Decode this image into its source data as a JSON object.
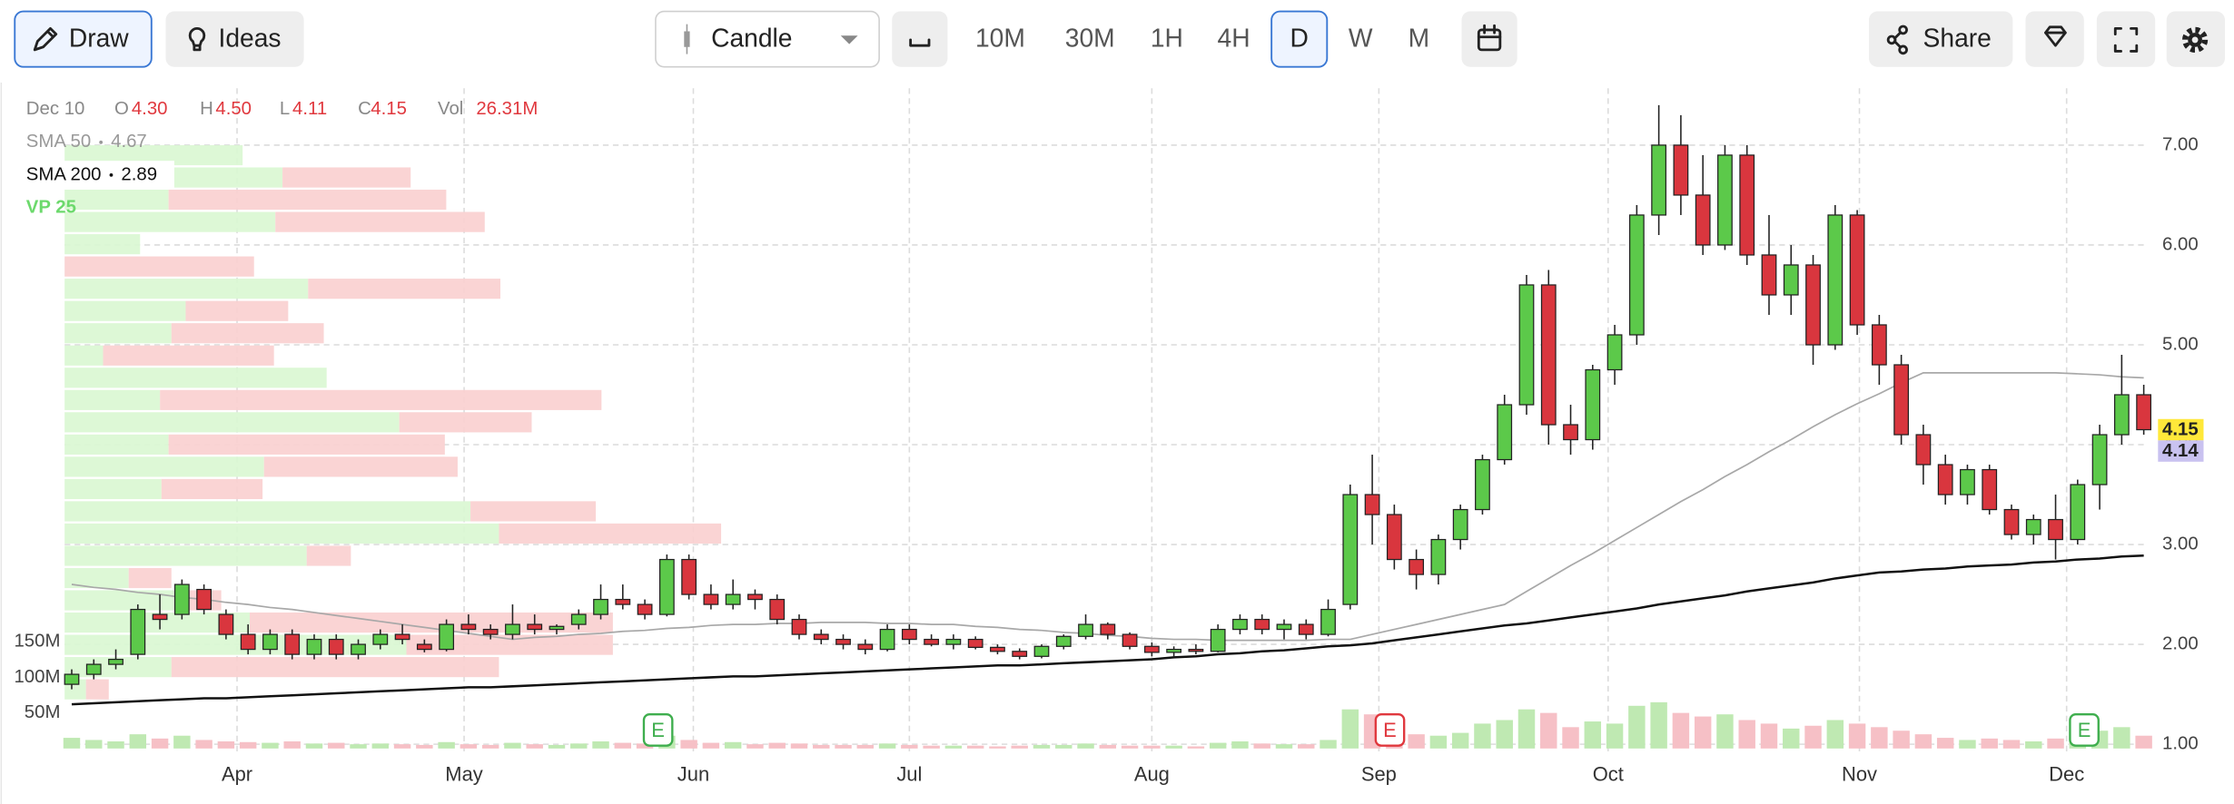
{
  "toolbar": {
    "draw": "Draw",
    "ideas": "Ideas",
    "chart_style": "Candle",
    "intervals": [
      "10M",
      "30M",
      "1H",
      "4H",
      "D",
      "W",
      "M"
    ],
    "active_interval": 4,
    "share": "Share"
  },
  "chart_data": {
    "type": "candlestick",
    "header": {
      "date": "Dec 10",
      "fields": [
        {
          "name": "O",
          "value": "4.30"
        },
        {
          "name": "H",
          "value": "4.50"
        },
        {
          "name": "L",
          "value": "4.11"
        },
        {
          "name": "C",
          "value": "4.15"
        },
        {
          "name": "Vol",
          "value": "26.31M"
        }
      ],
      "value_color": "#e0383e"
    },
    "up_color": "#5cc94a",
    "down_color": "#d9363e",
    "volume_up_color": "#bfe9b2",
    "volume_down_color": "#f6c0c6",
    "xlim": [
      0,
      94
    ],
    "xticks": [
      {
        "value": 7.5,
        "label": "Apr"
      },
      {
        "value": 17.8,
        "label": "May"
      },
      {
        "value": 28.2,
        "label": "Jun"
      },
      {
        "value": 38,
        "label": "Jul"
      },
      {
        "value": 49,
        "label": "Aug"
      },
      {
        "value": 59.3,
        "label": "Sep"
      },
      {
        "value": 69.7,
        "label": "Oct"
      },
      {
        "value": 81.1,
        "label": "Nov"
      },
      {
        "value": 90.5,
        "label": "Dec"
      }
    ],
    "ylim": [
      0.9,
      7.57
    ],
    "yticks": [
      {
        "value": 1,
        "label": "1.00"
      },
      {
        "value": 2,
        "label": "2.00"
      },
      {
        "value": 3,
        "label": "3.00"
      },
      {
        "value": 4,
        "label": "4.00"
      },
      {
        "value": 5,
        "label": "5.00"
      },
      {
        "value": 6,
        "label": "6.00"
      },
      {
        "value": 7,
        "label": "7.00"
      }
    ],
    "grid": true,
    "volume_ylim": [
      0,
      150
    ],
    "volume_ticks": [
      {
        "value": 150,
        "label": "150M"
      },
      {
        "value": 100,
        "label": "100M"
      },
      {
        "value": 50,
        "label": "50M"
      }
    ],
    "candles": [
      [
        1.6,
        1.75,
        1.55,
        1.7
      ],
      [
        1.7,
        1.85,
        1.65,
        1.8
      ],
      [
        1.8,
        1.95,
        1.75,
        1.85
      ],
      [
        1.9,
        2.4,
        1.85,
        2.35
      ],
      [
        2.3,
        2.5,
        2.15,
        2.25
      ],
      [
        2.3,
        2.65,
        2.25,
        2.6
      ],
      [
        2.55,
        2.6,
        2.3,
        2.35
      ],
      [
        2.3,
        2.35,
        2.05,
        2.1
      ],
      [
        2.1,
        2.2,
        1.9,
        1.95
      ],
      [
        1.95,
        2.15,
        1.9,
        2.1
      ],
      [
        2.1,
        2.15,
        1.85,
        1.9
      ],
      [
        1.9,
        2.1,
        1.85,
        2.05
      ],
      [
        2.05,
        2.1,
        1.85,
        1.9
      ],
      [
        1.9,
        2.05,
        1.85,
        2.0
      ],
      [
        2.0,
        2.15,
        1.95,
        2.1
      ],
      [
        2.1,
        2.2,
        2.0,
        2.05
      ],
      [
        2.0,
        2.05,
        1.92,
        1.95
      ],
      [
        1.95,
        2.25,
        1.93,
        2.2
      ],
      [
        2.2,
        2.3,
        2.1,
        2.15
      ],
      [
        2.15,
        2.2,
        2.05,
        2.1
      ],
      [
        2.1,
        2.4,
        2.05,
        2.2
      ],
      [
        2.2,
        2.3,
        2.1,
        2.15
      ],
      [
        2.15,
        2.2,
        2.1,
        2.18
      ],
      [
        2.2,
        2.35,
        2.15,
        2.3
      ],
      [
        2.3,
        2.6,
        2.25,
        2.45
      ],
      [
        2.45,
        2.6,
        2.35,
        2.4
      ],
      [
        2.4,
        2.45,
        2.25,
        2.3
      ],
      [
        2.3,
        2.9,
        2.28,
        2.85
      ],
      [
        2.85,
        2.9,
        2.45,
        2.5
      ],
      [
        2.5,
        2.6,
        2.35,
        2.4
      ],
      [
        2.4,
        2.65,
        2.35,
        2.5
      ],
      [
        2.5,
        2.55,
        2.35,
        2.45
      ],
      [
        2.45,
        2.5,
        2.2,
        2.25
      ],
      [
        2.25,
        2.3,
        2.05,
        2.1
      ],
      [
        2.1,
        2.15,
        2.0,
        2.05
      ],
      [
        2.05,
        2.1,
        1.95,
        2.0
      ],
      [
        2.0,
        2.05,
        1.9,
        1.95
      ],
      [
        1.95,
        2.2,
        1.93,
        2.15
      ],
      [
        2.15,
        2.2,
        2.0,
        2.05
      ],
      [
        2.05,
        2.1,
        1.98,
        2.0
      ],
      [
        2.0,
        2.1,
        1.95,
        2.05
      ],
      [
        2.05,
        2.08,
        1.95,
        1.97
      ],
      [
        1.97,
        2.0,
        1.9,
        1.93
      ],
      [
        1.93,
        1.96,
        1.85,
        1.88
      ],
      [
        1.88,
        2.0,
        1.86,
        1.98
      ],
      [
        1.98,
        2.1,
        1.95,
        2.08
      ],
      [
        2.08,
        2.3,
        2.05,
        2.2
      ],
      [
        2.2,
        2.22,
        2.05,
        2.1
      ],
      [
        2.1,
        2.12,
        1.95,
        1.98
      ],
      [
        1.98,
        2.02,
        1.88,
        1.92
      ],
      [
        1.92,
        1.98,
        1.88,
        1.95
      ],
      [
        1.95,
        2.0,
        1.9,
        1.93
      ],
      [
        1.93,
        2.2,
        1.92,
        2.15
      ],
      [
        2.15,
        2.3,
        2.1,
        2.25
      ],
      [
        2.25,
        2.3,
        2.1,
        2.15
      ],
      [
        2.15,
        2.25,
        2.05,
        2.2
      ],
      [
        2.2,
        2.25,
        2.05,
        2.1
      ],
      [
        2.1,
        2.45,
        2.08,
        2.35
      ],
      [
        2.4,
        3.6,
        2.35,
        3.5
      ],
      [
        3.5,
        3.9,
        3.0,
        3.3
      ],
      [
        3.3,
        3.4,
        2.75,
        2.85
      ],
      [
        2.85,
        2.95,
        2.55,
        2.7
      ],
      [
        2.7,
        3.1,
        2.6,
        3.05
      ],
      [
        3.05,
        3.4,
        2.95,
        3.35
      ],
      [
        3.35,
        3.9,
        3.3,
        3.85
      ],
      [
        3.85,
        4.5,
        3.8,
        4.4
      ],
      [
        4.4,
        5.7,
        4.3,
        5.6
      ],
      [
        5.6,
        5.75,
        4.0,
        4.2
      ],
      [
        4.2,
        4.4,
        3.9,
        4.05
      ],
      [
        4.05,
        4.8,
        3.95,
        4.75
      ],
      [
        4.75,
        5.2,
        4.6,
        5.1
      ],
      [
        5.1,
        6.4,
        5.0,
        6.3
      ],
      [
        6.3,
        7.4,
        6.1,
        7.0
      ],
      [
        7.0,
        7.3,
        6.3,
        6.5
      ],
      [
        6.5,
        6.9,
        5.9,
        6.0
      ],
      [
        6.0,
        7.0,
        5.95,
        6.9
      ],
      [
        6.9,
        7.0,
        5.8,
        5.9
      ],
      [
        5.9,
        6.3,
        5.3,
        5.5
      ],
      [
        5.5,
        6.0,
        5.3,
        5.8
      ],
      [
        5.8,
        5.9,
        4.8,
        5.0
      ],
      [
        5.0,
        6.4,
        4.95,
        6.3
      ],
      [
        6.3,
        6.35,
        5.1,
        5.2
      ],
      [
        5.2,
        5.3,
        4.6,
        4.8
      ],
      [
        4.8,
        4.9,
        4.0,
        4.1
      ],
      [
        4.1,
        4.2,
        3.6,
        3.8
      ],
      [
        3.8,
        3.9,
        3.4,
        3.5
      ],
      [
        3.5,
        3.8,
        3.4,
        3.75
      ],
      [
        3.75,
        3.8,
        3.3,
        3.35
      ],
      [
        3.35,
        3.4,
        3.05,
        3.1
      ],
      [
        3.1,
        3.3,
        3.0,
        3.25
      ],
      [
        3.25,
        3.5,
        2.85,
        3.05
      ],
      [
        3.05,
        3.65,
        3.0,
        3.6
      ],
      [
        3.6,
        4.2,
        3.35,
        4.1
      ],
      [
        4.1,
        4.9,
        4.0,
        4.5
      ],
      [
        4.5,
        4.6,
        4.1,
        4.15
      ]
    ],
    "volumes": [
      15,
      12,
      10,
      20,
      14,
      18,
      12,
      10,
      9,
      8,
      10,
      7,
      8,
      6,
      7,
      6,
      5,
      9,
      6,
      5,
      8,
      6,
      5,
      7,
      10,
      8,
      7,
      18,
      12,
      8,
      9,
      6,
      8,
      7,
      5,
      5,
      5,
      7,
      5,
      4,
      4,
      4,
      3,
      4,
      5,
      5,
      7,
      5,
      4,
      4,
      4,
      3,
      8,
      10,
      7,
      6,
      6,
      12,
      55,
      48,
      30,
      20,
      18,
      22,
      35,
      40,
      55,
      50,
      30,
      38,
      35,
      60,
      65,
      50,
      45,
      48,
      40,
      35,
      28,
      32,
      40,
      35,
      30,
      25,
      20,
      15,
      12,
      14,
      12,
      10,
      14,
      12,
      25,
      30,
      18
    ],
    "indicators": [
      {
        "name": "SMA 50",
        "value": "4.67",
        "color": "#a8a8a8",
        "values": [
          2.6,
          2.57,
          2.55,
          2.52,
          2.5,
          2.47,
          2.45,
          2.42,
          2.4,
          2.37,
          2.35,
          2.32,
          2.29,
          2.26,
          2.23,
          2.2,
          2.17,
          2.14,
          2.11,
          2.08,
          2.05,
          2.07,
          2.08,
          2.1,
          2.11,
          2.13,
          2.14,
          2.16,
          2.17,
          2.19,
          2.2,
          2.2,
          2.21,
          2.21,
          2.22,
          2.22,
          2.22,
          2.21,
          2.21,
          2.2,
          2.2,
          2.18,
          2.17,
          2.15,
          2.14,
          2.12,
          2.11,
          2.09,
          2.08,
          2.06,
          2.05,
          2.05,
          2.04,
          2.04,
          2.04,
          2.04,
          2.04,
          2.05,
          2.05,
          2.1,
          2.15,
          2.2,
          2.25,
          2.3,
          2.35,
          2.4,
          2.53,
          2.66,
          2.79,
          2.91,
          3.04,
          3.17,
          3.3,
          3.43,
          3.55,
          3.68,
          3.8,
          3.93,
          4.05,
          4.18,
          4.3,
          4.41,
          4.51,
          4.62,
          4.72,
          4.72,
          4.72,
          4.72,
          4.72,
          4.72,
          4.72,
          4.71,
          4.7,
          4.68,
          4.67
        ]
      },
      {
        "name": "SMA 200",
        "value": "2.89",
        "color": "#111111",
        "values": [
          1.4,
          1.41,
          1.42,
          1.43,
          1.44,
          1.45,
          1.46,
          1.46,
          1.47,
          1.48,
          1.49,
          1.5,
          1.51,
          1.52,
          1.53,
          1.54,
          1.55,
          1.56,
          1.57,
          1.57,
          1.58,
          1.59,
          1.6,
          1.61,
          1.62,
          1.63,
          1.64,
          1.65,
          1.66,
          1.67,
          1.68,
          1.68,
          1.69,
          1.7,
          1.71,
          1.72,
          1.73,
          1.74,
          1.75,
          1.76,
          1.77,
          1.78,
          1.79,
          1.79,
          1.8,
          1.81,
          1.82,
          1.83,
          1.84,
          1.85,
          1.87,
          1.88,
          1.9,
          1.91,
          1.93,
          1.94,
          1.96,
          1.98,
          1.99,
          2.01,
          2.04,
          2.07,
          2.1,
          2.13,
          2.16,
          2.19,
          2.21,
          2.24,
          2.27,
          2.3,
          2.33,
          2.36,
          2.4,
          2.43,
          2.46,
          2.49,
          2.53,
          2.56,
          2.59,
          2.62,
          2.66,
          2.69,
          2.72,
          2.73,
          2.75,
          2.76,
          2.78,
          2.79,
          2.8,
          2.82,
          2.83,
          2.85,
          2.86,
          2.88,
          2.89
        ]
      }
    ],
    "volume_profile": {
      "name": "VP 25",
      "color": "#6cd96c",
      "rows": [
        [
          125,
          0
        ],
        [
          153,
          90
        ],
        [
          73,
          195
        ],
        [
          148,
          147
        ],
        [
          53,
          0
        ],
        [
          0,
          133
        ],
        [
          171,
          135
        ],
        [
          85,
          72
        ],
        [
          75,
          107
        ],
        [
          27,
          120
        ],
        [
          184,
          0
        ],
        [
          67,
          310
        ],
        [
          235,
          93
        ],
        [
          73,
          194
        ],
        [
          140,
          136
        ],
        [
          68,
          71
        ],
        [
          285,
          88
        ],
        [
          305,
          156
        ],
        [
          170,
          31
        ],
        [
          45,
          30
        ],
        [
          80,
          30
        ],
        [
          130,
          255
        ],
        [
          240,
          145
        ],
        [
          75,
          230
        ],
        [
          15,
          16
        ]
      ]
    },
    "events": [
      {
        "label": "E",
        "x": 26.6,
        "color": "#3fae4e"
      },
      {
        "label": "E",
        "x": 59.8,
        "color": "#e0383e"
      },
      {
        "label": "E",
        "x": 91.3,
        "color": "#3fae4e"
      }
    ],
    "price_tags": [
      {
        "value": 4.15,
        "color": "#ffe83a"
      },
      {
        "value": 4.14,
        "color": "#c9c2f0"
      }
    ]
  }
}
